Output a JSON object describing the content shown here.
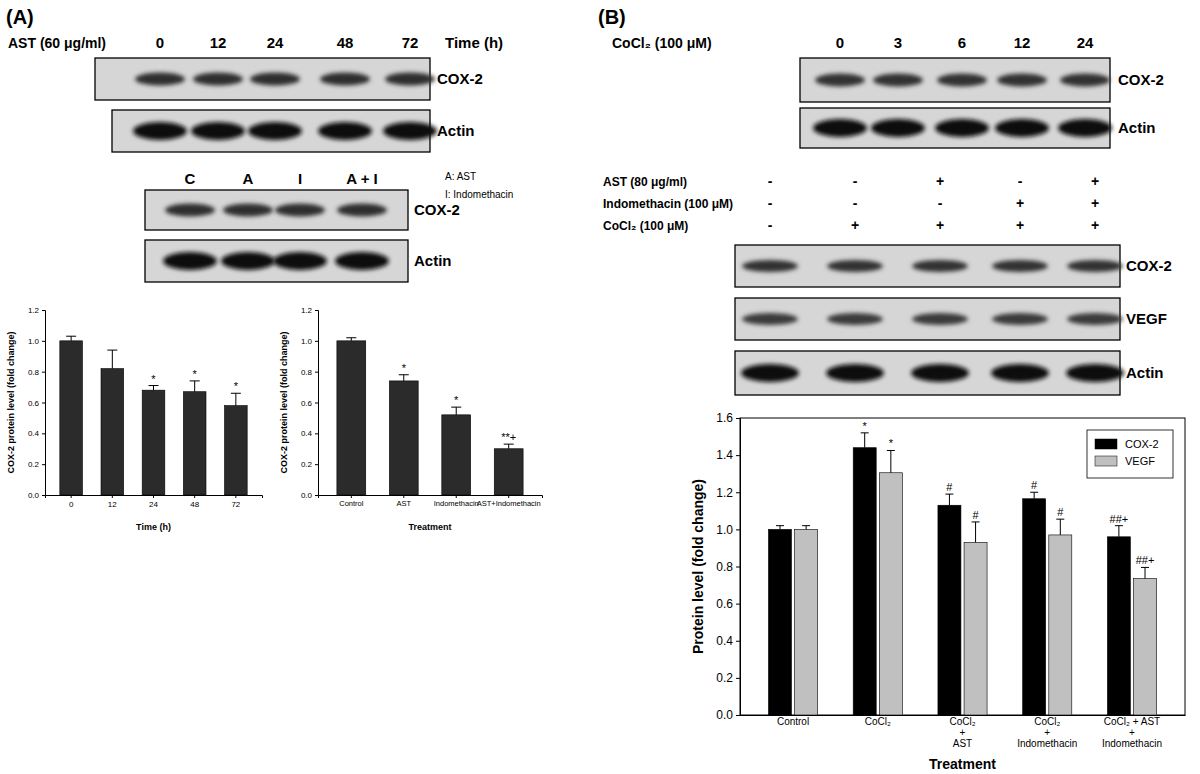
{
  "panel_labels": [
    "(A)",
    "(B)"
  ],
  "blots": [
    {
      "header": "AST (60 μg/ml)",
      "lanes": [
        "0",
        "12",
        "24",
        "48",
        "72"
      ],
      "lanes_title": "Time (h)",
      "rows": [
        "COX-2",
        "Actin"
      ]
    },
    {
      "lanes": [
        "C",
        "A",
        "I",
        "A + I"
      ],
      "key": [
        "A: AST",
        "I: Indomethacin"
      ],
      "rows": [
        "COX-2",
        "Actin"
      ]
    },
    {
      "header": "CoCl₂ (100 μM)",
      "lanes": [
        "0",
        "3",
        "6",
        "12",
        "24"
      ],
      "rows": [
        "COX-2",
        "Actin"
      ]
    },
    {
      "conditions": [
        {
          "label": "AST (80 μg/ml)",
          "signs": [
            "-",
            "-",
            "+",
            "-",
            "+"
          ]
        },
        {
          "label": "Indomethacin (100 μM)",
          "signs": [
            "-",
            "-",
            "-",
            "+",
            "+"
          ]
        },
        {
          "label": "CoCl₂ (100 μM)",
          "signs": [
            "-",
            "+",
            "+",
            "+",
            "+"
          ]
        }
      ],
      "rows": [
        "COX-2",
        "VEGF",
        "Actin"
      ]
    }
  ],
  "chart_data": [
    {
      "type": "bar",
      "x_label": "Time (h)",
      "y_label": "COX-2 protein level (fold change)",
      "categories": [
        "0",
        "12",
        "24",
        "48",
        "72"
      ],
      "values": [
        1.0,
        0.82,
        0.68,
        0.67,
        0.58
      ],
      "errors": [
        0.03,
        0.12,
        0.03,
        0.07,
        0.08
      ],
      "significance": [
        null,
        null,
        "*",
        "*",
        "*"
      ],
      "color": "#2b2b2b",
      "ylim": [
        0,
        1.2
      ],
      "yticks": [
        {
          "value": 0,
          "label": "0.0"
        },
        0.2,
        0.4,
        0.6,
        0.8,
        {
          "value": 1,
          "label": "1.0"
        },
        1.2
      ]
    },
    {
      "type": "bar",
      "x_label": "Treatment",
      "y_label": "COX-2 protein level (fold change)",
      "categories": [
        "Control",
        "AST",
        "Indomethacin",
        "AST+Indomethacin"
      ],
      "values": [
        1.0,
        0.74,
        0.52,
        0.3
      ],
      "errors": [
        0.02,
        0.04,
        0.05,
        0.03
      ],
      "significance": [
        null,
        "*",
        "*",
        "**+"
      ],
      "color": "#2b2b2b",
      "ylim": [
        0,
        1.2
      ],
      "yticks": [
        {
          "value": 0,
          "label": "0.0"
        },
        0.2,
        0.4,
        0.6,
        0.8,
        {
          "value": 1,
          "label": "1.0"
        },
        1.2
      ]
    },
    {
      "type": "bar",
      "x_label": "Treatment",
      "y_label": "Protein level (fold change)",
      "categories": [
        "Control",
        "CoCl₂",
        "CoCl₂\n+\nAST",
        "CoCl₂\n+\nIndomethacin",
        "CoCl₂ + AST\n+\nIndomethacin"
      ],
      "series": [
        {
          "name": "COX-2",
          "color": "#000000",
          "values": [
            1.0,
            1.44,
            1.13,
            1.165,
            0.96
          ],
          "errors": [
            0.02,
            0.08,
            0.06,
            0.035,
            0.06
          ],
          "significance": [
            null,
            "*",
            "#",
            "#",
            "##+"
          ]
        },
        {
          "name": "VEGF",
          "color": "#c0c0c0",
          "values": [
            1.0,
            1.305,
            0.93,
            0.97,
            0.735
          ],
          "errors": [
            0.02,
            0.12,
            0.11,
            0.085,
            0.06
          ],
          "significance": [
            null,
            "*",
            "#",
            "#",
            "##+"
          ]
        }
      ],
      "legend": "upper right",
      "ylim": [
        0,
        1.6
      ],
      "yticks": [
        {
          "value": 0,
          "label": "0.0"
        },
        0.2,
        0.4,
        0.6,
        0.8,
        {
          "value": 1,
          "label": "1.0"
        },
        1.2,
        1.4,
        1.6
      ]
    }
  ]
}
